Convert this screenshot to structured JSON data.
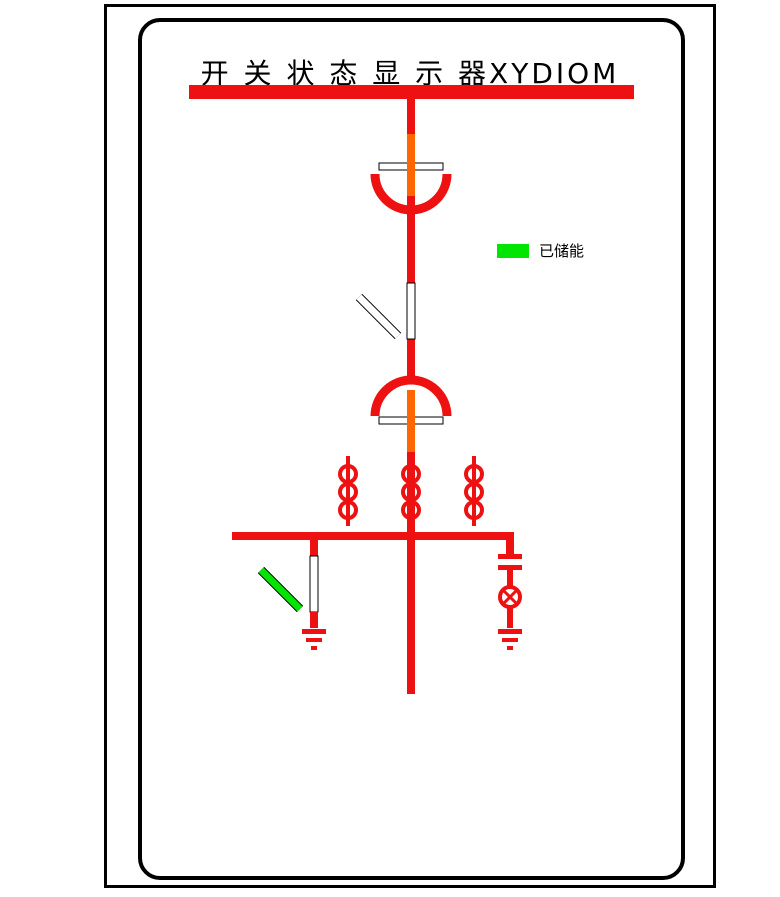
{
  "header": {
    "title": "开 关 状 态 显 示 器XYDIOM"
  },
  "legend": {
    "energy_stored_label": "已储能",
    "energy_stored_color": "#00e600"
  },
  "colors": {
    "live_line": "#ee1111",
    "contact_orange": "#ff6600",
    "open_switch": "#ffffff",
    "earth_switch_closed": "#00e600",
    "frame": "#000000"
  },
  "icons": {
    "upper_contact": "isolating-contact-icon",
    "lower_contact": "isolating-contact-icon",
    "breaker": "circuit-breaker-icon",
    "current_transformers": "current-transformer-icon",
    "earth_switch": "earthing-switch-icon",
    "surge_arrester": "surge-arrester-icon",
    "ground": "ground-icon"
  }
}
